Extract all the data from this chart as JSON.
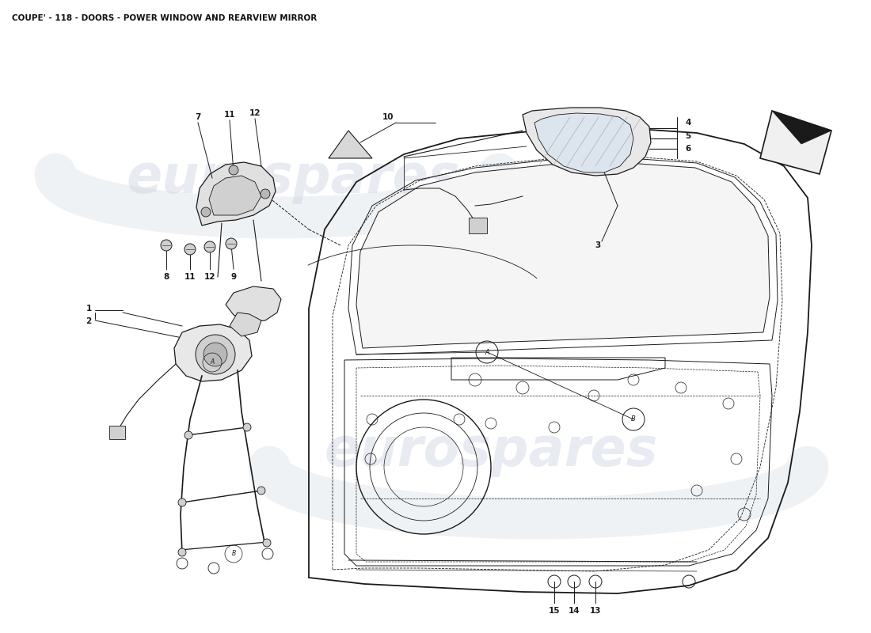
{
  "title": "COUPE' - 118 - DOORS - POWER WINDOW AND REARVIEW MIRROR",
  "title_fontsize": 7.5,
  "background_color": "#ffffff",
  "watermark1_text": "eurospares",
  "watermark2_text": "eurospares",
  "watermark_color": "#ccd4e0",
  "watermark_alpha": 0.45,
  "watermark_fontsize": 48,
  "fig_width": 11.0,
  "fig_height": 8.0,
  "dpi": 100,
  "line_color": "#1a1a1a",
  "light_line_color": "#444444",
  "label_fontsize": 7.5,
  "xlim": [
    0,
    1100
  ],
  "ylim": [
    0,
    800
  ]
}
